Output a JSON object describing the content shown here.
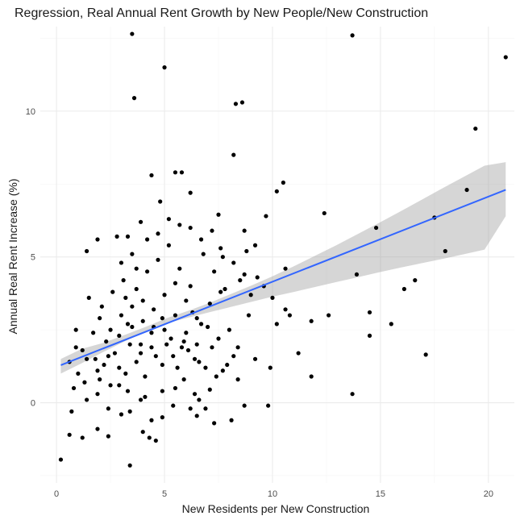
{
  "chart_data": {
    "type": "scatter",
    "title": "Regression, Real Annual Rent Growth by New People/New Construction",
    "xlabel": "New Residents per New Construction",
    "ylabel": "Annual Real Rent Increase (%)",
    "xlim": [
      -0.75,
      21.2
    ],
    "ylim": [
      -2.75,
      12.9
    ],
    "x_ticks": [
      0,
      5,
      10,
      15,
      20
    ],
    "x_tick_labels": [
      "0",
      "5",
      "10",
      "15",
      "20"
    ],
    "y_ticks": [
      0,
      5,
      10
    ],
    "y_tick_labels": [
      "0",
      "5",
      "10"
    ],
    "grid": true,
    "colors": {
      "points": "#000000",
      "fit_line": "#3366ff",
      "band": "#999999",
      "grid_major": "#ebebeb",
      "grid_minor": "#f5f5f5"
    },
    "regression": {
      "x_range": [
        0.2,
        20.8
      ],
      "intercept": 1.23,
      "slope": 0.292,
      "band_lower": [
        1.0,
        1.36,
        1.74,
        2.1,
        2.45,
        2.72,
        2.92,
        3.1,
        3.28,
        3.46,
        3.64,
        3.8,
        3.97,
        4.14,
        4.3,
        4.47,
        4.63,
        4.78,
        4.93,
        5.09,
        5.25,
        6.4
      ],
      "band_upper": [
        1.5,
        1.85,
        2.05,
        2.32,
        2.6,
        2.9,
        3.15,
        3.42,
        3.72,
        4.02,
        4.34,
        4.68,
        5.04,
        5.4,
        5.78,
        6.16,
        6.55,
        6.95,
        7.35,
        7.74,
        8.13,
        8.25
      ]
    },
    "points": [
      [
        0.2,
        -1.95
      ],
      [
        3.5,
        12.65
      ],
      [
        5.0,
        11.5
      ],
      [
        3.6,
        10.45
      ],
      [
        8.3,
        10.25
      ],
      [
        8.6,
        10.3
      ],
      [
        13.7,
        12.6
      ],
      [
        20.8,
        11.85
      ],
      [
        19.4,
        9.4
      ],
      [
        8.2,
        8.5
      ],
      [
        19.0,
        7.3
      ],
      [
        10.5,
        7.55
      ],
      [
        10.2,
        7.25
      ],
      [
        17.5,
        6.35
      ],
      [
        14.8,
        6.0
      ],
      [
        18.0,
        5.2
      ],
      [
        12.4,
        6.5
      ],
      [
        16.6,
        4.2
      ],
      [
        16.1,
        3.9
      ],
      [
        11.8,
        2.8
      ],
      [
        12.6,
        3.0
      ],
      [
        13.9,
        4.4
      ],
      [
        14.5,
        3.1
      ],
      [
        15.5,
        2.7
      ],
      [
        14.5,
        2.3
      ],
      [
        17.1,
        1.65
      ],
      [
        13.7,
        0.3
      ],
      [
        11.8,
        0.9
      ],
      [
        11.2,
        1.7
      ],
      [
        10.6,
        3.2
      ],
      [
        10.8,
        3.0
      ],
      [
        10.2,
        2.7
      ],
      [
        10.0,
        3.6
      ],
      [
        10.6,
        4.6
      ],
      [
        9.9,
        1.2
      ],
      [
        9.8,
        -0.1
      ],
      [
        9.6,
        4.0
      ],
      [
        9.0,
        3.7
      ],
      [
        8.8,
        5.2
      ],
      [
        8.5,
        4.2
      ],
      [
        8.7,
        5.9
      ],
      [
        9.7,
        6.4
      ],
      [
        9.2,
        5.4
      ],
      [
        7.5,
        6.45
      ],
      [
        7.6,
        5.3
      ],
      [
        6.2,
        7.2
      ],
      [
        5.8,
        7.9
      ],
      [
        5.5,
        7.9
      ],
      [
        4.4,
        7.8
      ],
      [
        4.8,
        6.9
      ],
      [
        3.9,
        6.2
      ],
      [
        3.3,
        5.7
      ],
      [
        2.8,
        5.7
      ],
      [
        1.9,
        5.6
      ],
      [
        1.4,
        5.2
      ],
      [
        1.5,
        3.6
      ],
      [
        0.9,
        2.5
      ],
      [
        1.2,
        1.8
      ],
      [
        0.6,
        1.4
      ],
      [
        1.0,
        1.0
      ],
      [
        0.7,
        -0.3
      ],
      [
        1.2,
        -1.2
      ],
      [
        0.6,
        -1.1
      ],
      [
        1.9,
        -0.9
      ],
      [
        2.4,
        -1.15
      ],
      [
        3.0,
        -0.4
      ],
      [
        3.4,
        -2.15
      ],
      [
        4.0,
        -1.0
      ],
      [
        4.3,
        -1.2
      ],
      [
        4.6,
        -1.3
      ],
      [
        4.9,
        -0.5
      ],
      [
        6.2,
        -0.2
      ],
      [
        6.5,
        -0.45
      ],
      [
        7.3,
        -0.7
      ],
      [
        8.1,
        -0.6
      ],
      [
        8.7,
        -0.1
      ],
      [
        7.1,
        0.45
      ],
      [
        6.6,
        0.1
      ],
      [
        5.5,
        0.5
      ],
      [
        4.1,
        0.2
      ],
      [
        3.3,
        0.4
      ],
      [
        2.5,
        0.6
      ],
      [
        2.0,
        0.8
      ],
      [
        1.4,
        0.1
      ],
      [
        0.8,
        0.5
      ],
      [
        1.8,
        1.5
      ],
      [
        2.3,
        2.1
      ],
      [
        2.9,
        2.3
      ],
      [
        3.5,
        2.6
      ],
      [
        3.9,
        2.0
      ],
      [
        4.4,
        2.4
      ],
      [
        4.9,
        2.9
      ],
      [
        5.3,
        2.2
      ],
      [
        5.8,
        1.9
      ],
      [
        6.3,
        3.1
      ],
      [
        6.7,
        2.7
      ],
      [
        7.1,
        3.4
      ],
      [
        7.6,
        3.8
      ],
      [
        8.0,
        2.5
      ],
      [
        8.4,
        1.9
      ],
      [
        8.9,
        3.0
      ],
      [
        9.2,
        1.5
      ],
      [
        2.1,
        3.3
      ],
      [
        2.6,
        3.8
      ],
      [
        3.1,
        4.2
      ],
      [
        3.7,
        3.9
      ],
      [
        4.2,
        4.5
      ],
      [
        4.7,
        4.9
      ],
      [
        5.2,
        5.4
      ],
      [
        5.7,
        4.6
      ],
      [
        6.2,
        4.0
      ],
      [
        6.8,
        5.1
      ],
      [
        7.3,
        4.5
      ],
      [
        7.8,
        3.9
      ],
      [
        1.7,
        2.4
      ],
      [
        2.2,
        1.3
      ],
      [
        2.7,
        1.7
      ],
      [
        3.2,
        1.0
      ],
      [
        3.7,
        1.4
      ],
      [
        4.1,
        0.9
      ],
      [
        4.6,
        1.6
      ],
      [
        5.1,
        2.0
      ],
      [
        5.6,
        1.2
      ],
      [
        6.1,
        1.8
      ],
      [
        6.6,
        1.4
      ],
      [
        7.2,
        1.9
      ],
      [
        7.7,
        1.1
      ],
      [
        8.2,
        1.6
      ],
      [
        1.3,
        0.7
      ],
      [
        1.9,
        0.3
      ],
      [
        2.4,
        -0.2
      ],
      [
        2.9,
        0.6
      ],
      [
        3.4,
        -0.3
      ],
      [
        3.9,
        0.1
      ],
      [
        4.4,
        -0.6
      ],
      [
        4.9,
        0.4
      ],
      [
        5.4,
        -0.1
      ],
      [
        5.9,
        0.8
      ],
      [
        6.4,
        0.3
      ],
      [
        6.9,
        -0.2
      ],
      [
        3.0,
        4.8
      ],
      [
        3.5,
        5.1
      ],
      [
        4.0,
        3.5
      ],
      [
        4.5,
        3.2
      ],
      [
        5.0,
        3.7
      ],
      [
        5.5,
        4.1
      ],
      [
        6.0,
        3.5
      ],
      [
        6.5,
        2.9
      ],
      [
        7.0,
        2.6
      ],
      [
        7.5,
        2.2
      ],
      [
        2.0,
        2.9
      ],
      [
        2.5,
        2.5
      ],
      [
        3.0,
        3.0
      ],
      [
        3.5,
        3.3
      ],
      [
        4.0,
        2.8
      ],
      [
        4.5,
        2.6
      ],
      [
        5.0,
        2.5
      ],
      [
        5.5,
        3.0
      ],
      [
        6.0,
        2.4
      ],
      [
        6.5,
        2.0
      ],
      [
        0.9,
        1.9
      ],
      [
        1.4,
        1.5
      ],
      [
        1.9,
        1.1
      ],
      [
        2.4,
        1.6
      ],
      [
        2.9,
        1.2
      ],
      [
        3.4,
        2.0
      ],
      [
        3.9,
        1.7
      ],
      [
        4.4,
        1.9
      ],
      [
        4.9,
        1.3
      ],
      [
        5.4,
        1.6
      ],
      [
        5.9,
        2.1
      ],
      [
        6.4,
        1.5
      ],
      [
        6.9,
        1.2
      ],
      [
        7.4,
        0.9
      ],
      [
        7.9,
        1.3
      ],
      [
        8.4,
        0.8
      ],
      [
        3.2,
        3.6
      ],
      [
        3.7,
        4.6
      ],
      [
        4.2,
        5.6
      ],
      [
        4.7,
        5.8
      ],
      [
        5.2,
        6.3
      ],
      [
        5.7,
        6.1
      ],
      [
        6.2,
        6.0
      ],
      [
        6.7,
        5.6
      ],
      [
        7.2,
        5.9
      ],
      [
        7.7,
        5.0
      ],
      [
        8.2,
        4.8
      ],
      [
        8.7,
        4.4
      ],
      [
        9.3,
        4.3
      ],
      [
        3.3,
        2.7
      ]
    ]
  }
}
